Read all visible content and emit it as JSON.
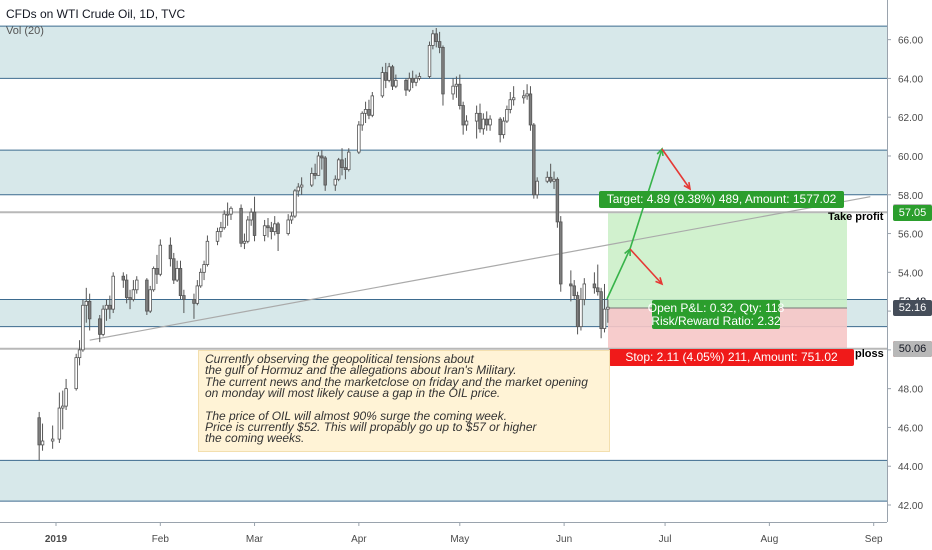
{
  "header": {
    "title": "CFDs on WTI Crude Oil, 1D, TVC",
    "indicator": "Vol (20)"
  },
  "colors": {
    "bull": "#ffffff",
    "bear": "#7e7e7e",
    "candle_border": "#555555",
    "zone_fill": "#d7e8ea",
    "zone_line": "#3d6b8f",
    "profit_fill": "#c9eec6",
    "loss_fill": "#f6c6c6",
    "profit_label": "#2b9e2d",
    "loss_label": "#f01a1a",
    "trend_line": "#aaaaaa",
    "arrow_green": "#37b34a",
    "arrow_red": "#e53935"
  },
  "note": {
    "paragraph1": "Currently observing the geopolitical tensions about\nthe gulf of Hormuz and the allegations about Iran's Military.\nThe current news and the marketclose on friday and the market opening\non monday will most likely cause a gap in the OIL price.",
    "paragraph2": "The price of OIL will almost 90% surge the coming week.\nPrice is currently $52. This will propably go up to $57 or higher\nthe coming weeks."
  },
  "position": {
    "target_label": "Target: 4.89 (9.38%) 489, Amount: 1577.02",
    "stop_label": "Stop: 2.11 (4.05%) 211, Amount: 751.02",
    "pnl_label": "Open P&L: 0.32, Qty: 118",
    "rr_label": "Risk/Reward Ratio: 2.32",
    "take_profit_text": "Take profit",
    "stop_loss_text": "ploss",
    "entry": 52.16,
    "target": 57.05,
    "stop": 50.05
  },
  "price_tags": [
    {
      "value": "57.10",
      "style": "gray"
    },
    {
      "value": "57.05",
      "style": "green"
    },
    {
      "value": "52.48",
      "style": "plain"
    },
    {
      "value": "52.16",
      "style": "dark"
    },
    {
      "value": "50.05",
      "style": "red"
    },
    {
      "value": "50.06",
      "style": "gray"
    }
  ],
  "chart_data": {
    "type": "candlestick",
    "title": "CFDs on WTI Crude Oil, 1D, TVC",
    "ylim": [
      41.8,
      67.0
    ],
    "y_ticks": [
      "42.00",
      "44.00",
      "46.00",
      "48.00",
      "50.00",
      "52.00",
      "54.00",
      "56.00",
      "58.00",
      "60.00",
      "62.00",
      "64.00",
      "66.00"
    ],
    "x_ticks": [
      "2019",
      "Feb",
      "Mar",
      "Apr",
      "May",
      "Jun",
      "Jul",
      "Aug",
      "Sep"
    ],
    "zones": [
      [
        64.0,
        66.7
      ],
      [
        58.0,
        60.3
      ],
      [
        51.2,
        52.6
      ],
      [
        42.2,
        44.3
      ]
    ],
    "horizontal_lines": [
      57.1,
      50.06
    ],
    "trend_line": [
      {
        "x": "2019-01-11",
        "y": 50.5
      },
      {
        "x": "2019-08-31",
        "y": 57.9
      }
    ],
    "candles": [
      [
        "2018-12-27",
        46.5,
        46.8,
        44.3,
        45.1
      ],
      [
        "2018-12-28",
        45.1,
        46.2,
        44.8,
        45.3
      ],
      [
        "2018-12-31",
        45.3,
        46.1,
        44.9,
        45.4
      ],
      [
        "2019-01-02",
        45.4,
        47.8,
        45.2,
        47.0
      ],
      [
        "2019-01-03",
        47.0,
        47.9,
        45.9,
        47.1
      ],
      [
        "2019-01-04",
        47.1,
        48.5,
        46.9,
        48.0
      ],
      [
        "2019-01-07",
        48.0,
        49.8,
        47.9,
        49.6
      ],
      [
        "2019-01-08",
        49.6,
        50.5,
        49.2,
        50.0
      ],
      [
        "2019-01-09",
        50.0,
        52.6,
        49.9,
        52.3
      ],
      [
        "2019-01-10",
        52.3,
        53.2,
        51.4,
        52.5
      ],
      [
        "2019-01-11",
        52.5,
        52.9,
        51.0,
        51.6
      ],
      [
        "2019-01-14",
        51.6,
        51.8,
        50.4,
        50.8
      ],
      [
        "2019-01-15",
        50.8,
        52.3,
        50.7,
        52.1
      ],
      [
        "2019-01-16",
        52.1,
        52.6,
        51.5,
        52.3
      ],
      [
        "2019-01-17",
        52.3,
        52.8,
        51.6,
        52.1
      ],
      [
        "2019-01-18",
        52.1,
        54.0,
        51.9,
        53.8
      ],
      [
        "2019-01-21",
        53.8,
        54.0,
        53.2,
        53.6
      ],
      [
        "2019-01-22",
        53.6,
        53.9,
        52.4,
        52.7
      ],
      [
        "2019-01-23",
        52.7,
        53.1,
        52.1,
        52.6
      ],
      [
        "2019-01-24",
        52.6,
        53.6,
        52.5,
        53.1
      ],
      [
        "2019-01-25",
        53.1,
        53.8,
        52.9,
        53.6
      ],
      [
        "2019-01-28",
        53.6,
        53.7,
        51.8,
        52.0
      ],
      [
        "2019-01-29",
        52.0,
        53.3,
        51.9,
        53.1
      ],
      [
        "2019-01-30",
        53.1,
        54.3,
        53.0,
        54.2
      ],
      [
        "2019-01-31",
        54.2,
        54.9,
        53.4,
        53.9
      ],
      [
        "2019-02-01",
        53.9,
        55.7,
        53.8,
        55.4
      ],
      [
        "2019-02-04",
        55.4,
        55.8,
        54.3,
        54.7
      ],
      [
        "2019-02-05",
        54.7,
        55.0,
        53.4,
        53.6
      ],
      [
        "2019-02-06",
        53.6,
        54.6,
        53.5,
        54.2
      ],
      [
        "2019-02-07",
        54.2,
        54.6,
        52.6,
        52.8
      ],
      [
        "2019-02-08",
        52.8,
        53.1,
        51.9,
        52.6
      ],
      [
        "2019-02-11",
        52.6,
        52.9,
        51.6,
        52.4
      ],
      [
        "2019-02-12",
        52.4,
        53.6,
        52.3,
        53.3
      ],
      [
        "2019-02-13",
        53.3,
        54.2,
        53.2,
        54.0
      ],
      [
        "2019-02-14",
        54.0,
        54.6,
        53.6,
        54.4
      ],
      [
        "2019-02-15",
        54.4,
        55.9,
        54.3,
        55.6
      ],
      [
        "2019-02-18",
        55.6,
        56.3,
        55.4,
        56.1
      ],
      [
        "2019-02-19",
        56.1,
        56.6,
        55.8,
        56.3
      ],
      [
        "2019-02-20",
        56.3,
        57.2,
        56.2,
        57.0
      ],
      [
        "2019-02-21",
        57.0,
        57.6,
        56.4,
        57.0
      ],
      [
        "2019-02-22",
        57.0,
        57.4,
        56.7,
        57.3
      ],
      [
        "2019-02-25",
        57.3,
        57.5,
        55.3,
        55.5
      ],
      [
        "2019-02-26",
        55.5,
        56.0,
        55.2,
        55.6
      ],
      [
        "2019-02-27",
        55.6,
        56.9,
        55.5,
        56.7
      ],
      [
        "2019-02-28",
        56.7,
        57.3,
        56.4,
        57.1
      ],
      [
        "2019-03-01",
        57.1,
        57.9,
        55.6,
        55.9
      ],
      [
        "2019-03-04",
        55.9,
        56.7,
        55.6,
        56.4
      ],
      [
        "2019-03-05",
        56.4,
        56.8,
        55.8,
        56.3
      ],
      [
        "2019-03-06",
        56.3,
        56.6,
        55.7,
        56.1
      ],
      [
        "2019-03-07",
        56.1,
        56.9,
        55.9,
        56.5
      ],
      [
        "2019-03-08",
        56.5,
        56.6,
        55.1,
        56.0
      ],
      [
        "2019-03-11",
        56.0,
        57.0,
        55.9,
        56.7
      ],
      [
        "2019-03-12",
        56.7,
        57.1,
        56.5,
        56.9
      ],
      [
        "2019-03-13",
        56.9,
        58.3,
        56.8,
        58.2
      ],
      [
        "2019-03-14",
        58.2,
        58.6,
        57.9,
        58.4
      ],
      [
        "2019-03-15",
        58.4,
        58.9,
        58.0,
        58.5
      ],
      [
        "2019-03-18",
        58.5,
        59.4,
        58.4,
        59.1
      ],
      [
        "2019-03-19",
        59.1,
        59.6,
        58.8,
        59.0
      ],
      [
        "2019-03-20",
        59.0,
        60.2,
        59.0,
        60.0
      ],
      [
        "2019-03-21",
        60.0,
        60.3,
        59.3,
        59.9
      ],
      [
        "2019-03-22",
        59.9,
        60.0,
        58.2,
        58.5
      ],
      [
        "2019-03-25",
        58.5,
        59.0,
        58.2,
        58.8
      ],
      [
        "2019-03-26",
        58.8,
        59.9,
        58.7,
        59.8
      ],
      [
        "2019-03-27",
        59.8,
        60.4,
        59.0,
        59.4
      ],
      [
        "2019-03-28",
        59.4,
        59.9,
        58.8,
        59.3
      ],
      [
        "2019-03-29",
        59.3,
        60.4,
        59.2,
        60.2
      ],
      [
        "2019-04-01",
        60.2,
        61.8,
        60.1,
        61.6
      ],
      [
        "2019-04-02",
        61.6,
        62.3,
        61.3,
        62.2
      ],
      [
        "2019-04-03",
        62.2,
        62.8,
        61.7,
        62.4
      ],
      [
        "2019-04-04",
        62.4,
        62.9,
        61.9,
        62.1
      ],
      [
        "2019-04-05",
        62.1,
        63.3,
        62.0,
        63.1
      ],
      [
        "2019-04-08",
        63.1,
        64.6,
        63.0,
        64.3
      ],
      [
        "2019-04-09",
        64.3,
        64.8,
        63.5,
        63.9
      ],
      [
        "2019-04-10",
        63.9,
        64.8,
        63.8,
        64.6
      ],
      [
        "2019-04-11",
        64.6,
        64.7,
        63.4,
        63.6
      ],
      [
        "2019-04-12",
        63.6,
        64.2,
        63.5,
        63.9
      ],
      [
        "2019-04-15",
        63.9,
        64.0,
        63.1,
        63.4
      ],
      [
        "2019-04-16",
        63.4,
        64.3,
        63.3,
        64.0
      ],
      [
        "2019-04-17",
        64.0,
        64.4,
        63.5,
        63.8
      ],
      [
        "2019-04-18",
        63.8,
        64.2,
        63.6,
        64.0
      ],
      [
        "2019-04-19",
        64.0,
        64.3,
        63.9,
        64.1
      ],
      [
        "2019-04-22",
        64.1,
        65.9,
        64.0,
        65.7
      ],
      [
        "2019-04-23",
        65.7,
        66.5,
        65.5,
        66.3
      ],
      [
        "2019-04-24",
        66.3,
        66.6,
        65.6,
        65.9
      ],
      [
        "2019-04-25",
        65.9,
        66.4,
        65.3,
        65.6
      ],
      [
        "2019-04-26",
        65.6,
        65.7,
        62.6,
        63.2
      ],
      [
        "2019-04-29",
        63.2,
        64.0,
        62.9,
        63.6
      ],
      [
        "2019-04-30",
        63.6,
        64.1,
        63.0,
        63.7
      ],
      [
        "2019-05-01",
        63.7,
        64.2,
        62.4,
        62.6
      ],
      [
        "2019-05-02",
        62.6,
        62.8,
        61.1,
        61.6
      ],
      [
        "2019-05-03",
        61.6,
        62.1,
        61.3,
        61.8
      ],
      [
        "2019-05-06",
        61.8,
        62.6,
        60.9,
        62.2
      ],
      [
        "2019-05-07",
        62.2,
        62.7,
        61.2,
        61.4
      ],
      [
        "2019-05-08",
        61.4,
        62.2,
        61.1,
        61.9
      ],
      [
        "2019-05-09",
        61.9,
        62.3,
        61.3,
        61.6
      ],
      [
        "2019-05-10",
        61.6,
        62.1,
        61.3,
        61.9
      ],
      [
        "2019-05-13",
        61.9,
        62.0,
        60.7,
        61.1
      ],
      [
        "2019-05-14",
        61.1,
        62.0,
        60.9,
        61.8
      ],
      [
        "2019-05-15",
        61.8,
        62.6,
        61.7,
        62.4
      ],
      [
        "2019-05-16",
        62.4,
        63.3,
        62.2,
        62.9
      ],
      [
        "2019-05-17",
        62.9,
        63.6,
        62.6,
        63.0
      ],
      [
        "2019-05-20",
        63.0,
        63.4,
        62.7,
        63.1
      ],
      [
        "2019-05-21",
        63.1,
        63.7,
        62.9,
        63.2
      ],
      [
        "2019-05-22",
        63.2,
        63.6,
        61.3,
        61.6
      ],
      [
        "2019-05-23",
        61.6,
        61.7,
        57.8,
        58.0
      ],
      [
        "2019-05-24",
        58.0,
        58.9,
        57.8,
        58.7
      ],
      [
        "2019-05-27",
        58.7,
        59.2,
        58.6,
        58.9
      ],
      [
        "2019-05-28",
        58.9,
        59.6,
        58.6,
        58.7
      ],
      [
        "2019-05-29",
        58.7,
        59.2,
        58.3,
        58.8
      ],
      [
        "2019-05-30",
        58.8,
        58.9,
        56.3,
        56.6
      ],
      [
        "2019-05-31",
        56.6,
        56.9,
        53.0,
        53.4
      ],
      [
        "2019-06-03",
        53.4,
        54.1,
        52.5,
        53.3
      ],
      [
        "2019-06-04",
        53.3,
        53.6,
        52.6,
        52.8
      ],
      [
        "2019-06-05",
        52.8,
        53.0,
        50.8,
        51.2
      ],
      [
        "2019-06-06",
        51.2,
        53.2,
        51.0,
        52.6
      ],
      [
        "2019-06-07",
        52.6,
        53.7,
        52.3,
        53.4
      ],
      [
        "2019-06-10",
        53.4,
        54.0,
        52.9,
        53.2
      ],
      [
        "2019-06-11",
        53.2,
        54.4,
        52.8,
        53.0
      ],
      [
        "2019-06-12",
        53.0,
        53.2,
        50.6,
        51.1
      ],
      [
        "2019-06-13",
        51.1,
        53.4,
        50.9,
        52.1
      ],
      [
        "2019-06-14",
        52.1,
        52.6,
        51.4,
        52.2
      ]
    ]
  }
}
